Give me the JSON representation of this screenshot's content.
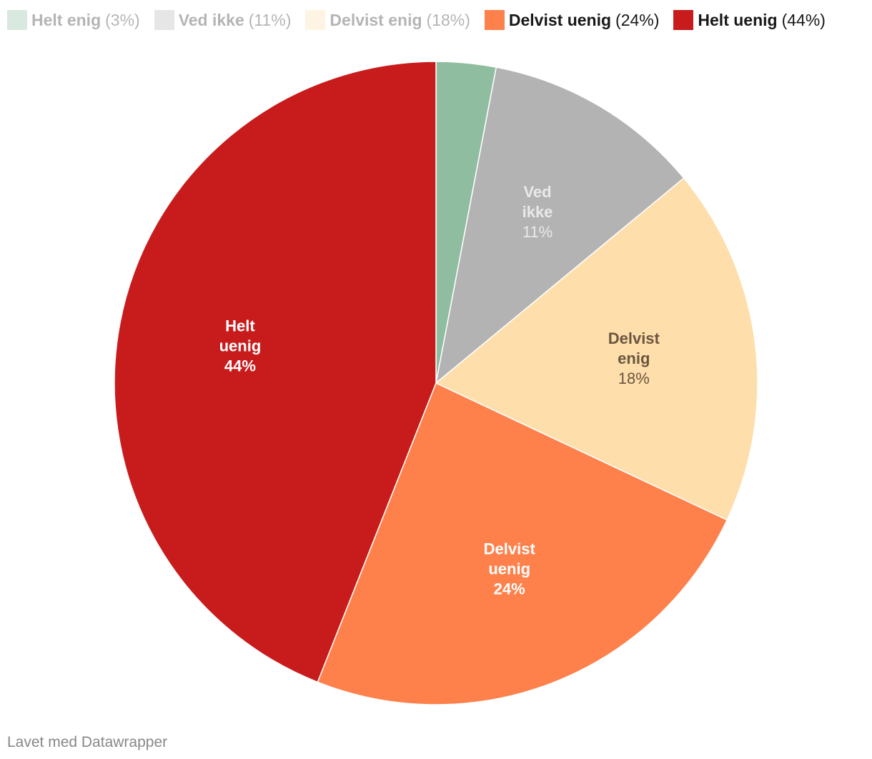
{
  "chart_data": {
    "type": "pie",
    "slices": [
      {
        "name": "Helt enig",
        "value": 3,
        "percent_label": "3%",
        "color": "#8fbd9f",
        "label_lines": [
          "Helt",
          "enig"
        ],
        "label_color": "#ffffff",
        "dimmed": true,
        "show_label": false
      },
      {
        "name": "Ved ikke",
        "value": 11,
        "percent_label": "11%",
        "color": "#b3b3b3",
        "label_lines": [
          "Ved",
          "ikke"
        ],
        "label_color": "#e9e9e9",
        "dimmed": true,
        "show_label": true
      },
      {
        "name": "Delvist enig",
        "value": 18,
        "percent_label": "18%",
        "color": "#fedeab",
        "label_lines": [
          "Delvist",
          "enig"
        ],
        "label_color": "#6b5640",
        "dimmed": true,
        "show_label": true
      },
      {
        "name": "Delvist uenig",
        "value": 24,
        "percent_label": "24%",
        "color": "#fe814c",
        "label_lines": [
          "Delvist",
          "uenig"
        ],
        "label_color": "#ffffff",
        "dimmed": false,
        "show_label": true
      },
      {
        "name": "Helt uenig",
        "value": 44,
        "percent_label": "44%",
        "color": "#c81b1c",
        "label_lines": [
          "Helt",
          "uenig"
        ],
        "label_color": "#ffffff",
        "dimmed": false,
        "show_label": true
      }
    ],
    "legend_placement": "top-left",
    "start_angle": "top",
    "direction": "clockwise"
  },
  "footer": {
    "credit": "Lavet med Datawrapper"
  }
}
